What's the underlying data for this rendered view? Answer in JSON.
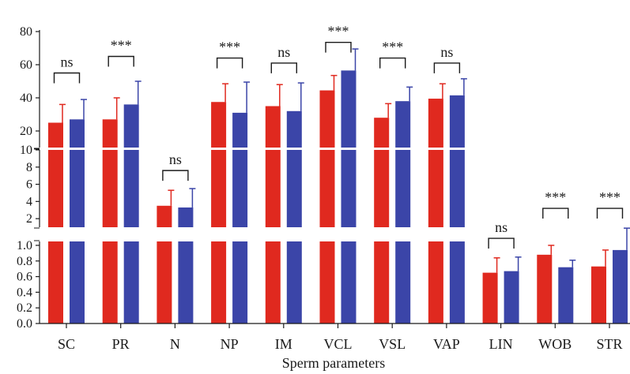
{
  "chart_data": {
    "type": "bar",
    "xlabel": "Sperm parameters",
    "categories": [
      "SC",
      "PR",
      "N",
      "NP",
      "IM",
      "VCL",
      "VSL",
      "VAP",
      "LIN",
      "WOB",
      "STR"
    ],
    "panels": [
      {
        "name": "top",
        "ylim": [
          10,
          80
        ],
        "ticks": [
          20,
          40,
          60,
          80
        ]
      },
      {
        "name": "middle",
        "ylim": [
          1,
          10
        ],
        "ticks": [
          2,
          4,
          6,
          8,
          10
        ]
      },
      {
        "name": "bottom",
        "ylim": [
          0,
          1.05
        ],
        "ticks": [
          "0.0",
          "0.2",
          "0.4",
          "0.6",
          "0.8",
          "1.0"
        ]
      }
    ],
    "colors": {
      "series1": "#e0291f",
      "series2": "#3b45a8"
    },
    "series": [
      {
        "values": [
          25,
          27,
          3.5,
          37.5,
          35,
          44.5,
          28,
          39.5,
          0.65,
          0.88,
          0.73
        ],
        "errors": [
          11,
          13,
          1.8,
          11,
          13,
          9,
          8.5,
          9,
          0.19,
          0.12,
          0.21
        ],
        "panel": [
          "top",
          "top",
          "middle",
          "top",
          "top",
          "top",
          "top",
          "top",
          "bottom",
          "bottom",
          "bottom"
        ]
      },
      {
        "values": [
          27,
          36,
          3.3,
          31,
          32,
          56.5,
          38,
          41.5,
          0.67,
          0.72,
          0.94
        ],
        "errors": [
          12,
          14,
          2.2,
          18.5,
          17,
          13,
          8.5,
          10,
          0.18,
          0.09,
          0.28
        ],
        "panel": [
          "top",
          "top",
          "middle",
          "top",
          "top",
          "top",
          "top",
          "top",
          "bottom",
          "bottom",
          "bottom"
        ]
      }
    ],
    "significance": [
      {
        "category": "SC",
        "label": "ns",
        "panel": "top",
        "y": 55
      },
      {
        "category": "PR",
        "label": "***",
        "panel": "top",
        "y": 65
      },
      {
        "category": "N",
        "label": "ns",
        "panel": "middle",
        "y": 7.6
      },
      {
        "category": "NP",
        "label": "***",
        "panel": "top",
        "y": 64
      },
      {
        "category": "IM",
        "label": "ns",
        "panel": "top",
        "y": 61
      },
      {
        "category": "VCL",
        "label": "***",
        "panel": "top",
        "y": 73.5
      },
      {
        "category": "VSL",
        "label": "***",
        "panel": "top",
        "y": 64
      },
      {
        "category": "VAP",
        "label": "ns",
        "panel": "top",
        "y": 61
      },
      {
        "category": "LIN",
        "label": "ns",
        "panel": "bottom",
        "y": 1.09
      },
      {
        "category": "WOB",
        "label": "***",
        "panel": "middle",
        "y": 3.2
      },
      {
        "category": "STR",
        "label": "***",
        "panel": "middle",
        "y": 3.2
      }
    ]
  }
}
